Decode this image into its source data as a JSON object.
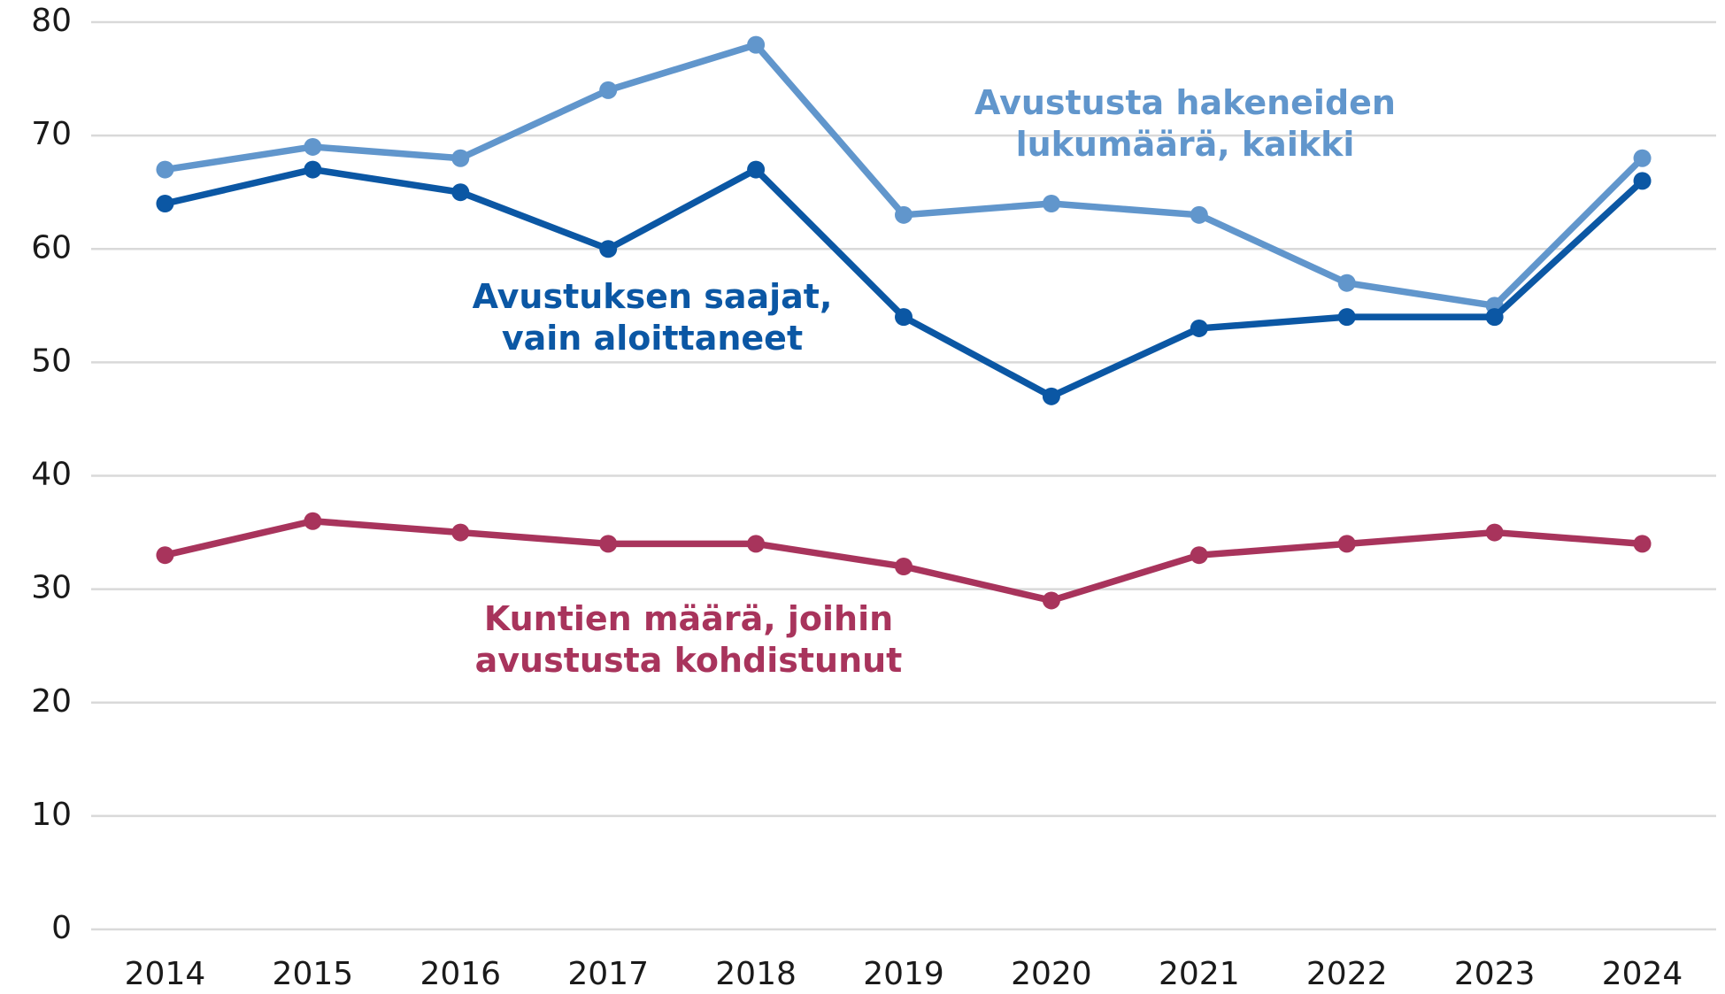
{
  "chart_data": {
    "type": "line",
    "categories": [
      "2014",
      "2015",
      "2016",
      "2017",
      "2018",
      "2019",
      "2020",
      "2021",
      "2022",
      "2023",
      "2024"
    ],
    "series": [
      {
        "name": [
          "Kuntien määrä, joihin",
          "avustusta kohdistunut"
        ],
        "color": "#a8345c",
        "values": [
          33,
          36,
          35,
          34,
          34,
          32,
          29,
          33,
          34,
          35,
          34
        ]
      },
      {
        "name": [
          "Avustusta hakeneiden",
          "lukumäärä, kaikki"
        ],
        "color": "#6196cc",
        "values": [
          67,
          69,
          68,
          74,
          78,
          63,
          64,
          63,
          57,
          55,
          68
        ]
      },
      {
        "name": [
          "Avustuksen saajat,",
          "vain aloittaneet"
        ],
        "color": "#0b57a4",
        "values": [
          64,
          67,
          65,
          60,
          67,
          54,
          47,
          53,
          54,
          54,
          66
        ]
      }
    ],
    "ylim": [
      0,
      80
    ],
    "yticks": [
      0,
      10,
      20,
      30,
      40,
      50,
      60,
      70,
      80
    ],
    "grid": true
  }
}
